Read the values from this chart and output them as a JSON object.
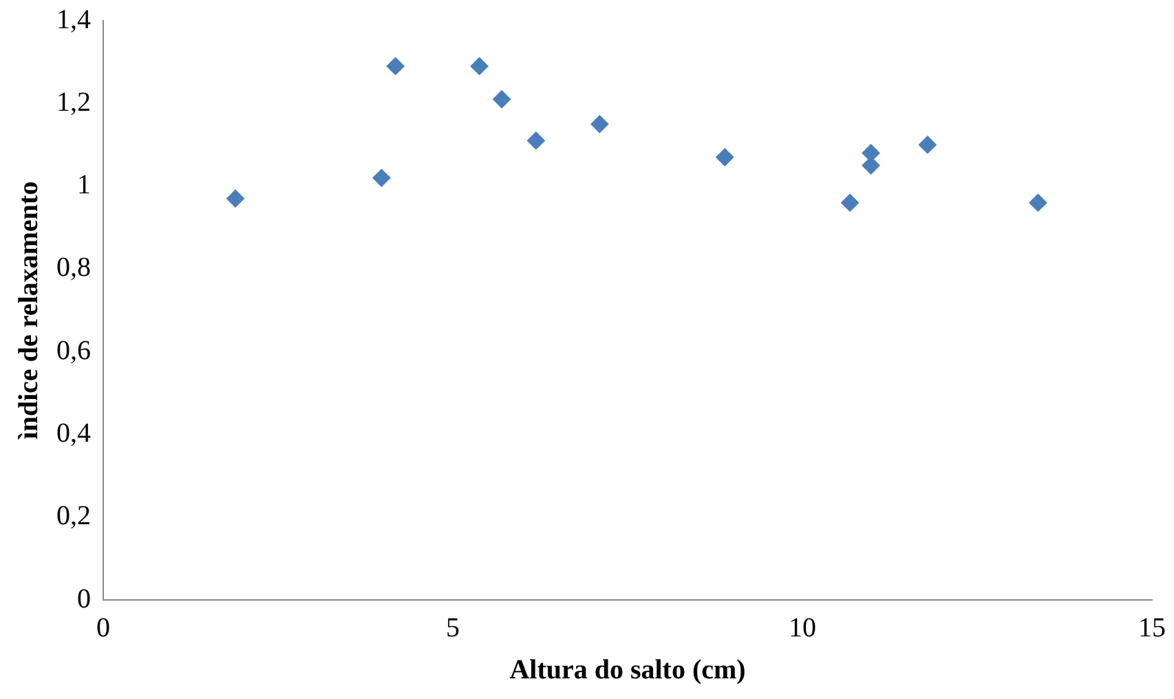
{
  "chart_data": {
    "type": "scatter",
    "xlabel": "Altura do salto (cm)",
    "ylabel": "ìndice de relaxamento",
    "x": [
      1.89,
      3.98,
      4.18,
      5.38,
      5.7,
      6.19,
      7.1,
      8.89,
      10.68,
      10.98,
      10.98,
      11.79,
      13.37
    ],
    "series": [
      {
        "color": "#4a7ebb",
        "values": [
          0.97,
          1.02,
          1.29,
          1.29,
          1.21,
          1.11,
          1.15,
          1.07,
          0.96,
          1.08,
          1.05,
          1.1,
          0.96
        ]
      }
    ],
    "xlim": [
      0,
      15
    ],
    "xticks": [
      0,
      5,
      10,
      15
    ],
    "ylim": [
      0,
      1.4
    ],
    "yticks": [
      0,
      {
        "value": 0.2,
        "label": "0,2"
      },
      {
        "value": 0.4,
        "label": "0,4"
      },
      {
        "value": 0.6,
        "label": "0,6"
      },
      {
        "value": 0.8,
        "label": "0,8"
      },
      1,
      {
        "value": 1.2,
        "label": "1,2"
      },
      {
        "value": 1.4,
        "label": "1,4"
      }
    ],
    "grid": false,
    "legend": false,
    "marker": "diamond"
  }
}
